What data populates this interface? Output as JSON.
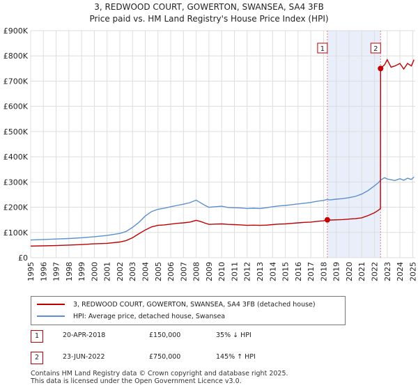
{
  "colors": {
    "property_line": "#c00000",
    "hpi_line": "#5b8fd0",
    "shade": "#e8eefa",
    "vline": "#e08080",
    "grid": "#dddddd"
  },
  "header": {
    "title_line1": "3, REDWOOD COURT, GOWERTON, SWANSEA, SA4 3FB",
    "title_line2": "Price paid vs. HM Land Registry's House Price Index (HPI)"
  },
  "chart_data": {
    "type": "line",
    "xlim": [
      1995,
      2025.2
    ],
    "ylim": [
      0,
      900000
    ],
    "y_ticks": [
      {
        "value": 0,
        "label": "£0"
      },
      {
        "value": 100000,
        "label": "£100K"
      },
      {
        "value": 200000,
        "label": "£200K"
      },
      {
        "value": 300000,
        "label": "£300K"
      },
      {
        "value": 400000,
        "label": "£400K"
      },
      {
        "value": 500000,
        "label": "£500K"
      },
      {
        "value": 600000,
        "label": "£600K"
      },
      {
        "value": 700000,
        "label": "£700K"
      },
      {
        "value": 800000,
        "label": "£800K"
      },
      {
        "value": 900000,
        "label": "£900K"
      }
    ],
    "x_ticks": [
      "1995",
      "1996",
      "1997",
      "1998",
      "1999",
      "2000",
      "2001",
      "2002",
      "2003",
      "2004",
      "2005",
      "2006",
      "2007",
      "2008",
      "2009",
      "2010",
      "2011",
      "2012",
      "2013",
      "2014",
      "2015",
      "2016",
      "2017",
      "2018",
      "2019",
      "2020",
      "2021",
      "2022",
      "2023",
      "2024",
      "2025"
    ],
    "shaded_region": [
      2018.3,
      2022.48
    ],
    "series": [
      {
        "name": "3, REDWOOD COURT, GOWERTON, SWANSEA, SA4 3FB (detached house)",
        "x": [
          1995,
          1996,
          1997,
          1998,
          1999,
          2000,
          2001,
          2002,
          2002.5,
          2003,
          2003.5,
          2004,
          2004.5,
          2005,
          2005.5,
          2006,
          2006.5,
          2007,
          2007.5,
          2008,
          2008.3,
          2008.7,
          2009,
          2009.5,
          2010,
          2010.5,
          2011,
          2011.5,
          2012,
          2012.5,
          2013,
          2013.5,
          2014,
          2014.5,
          2015,
          2015.5,
          2016,
          2016.5,
          2017,
          2017.5,
          2018,
          2018.3,
          2018.5,
          2019,
          2019.5,
          2020,
          2020.5,
          2021,
          2021.5,
          2022,
          2022.3,
          2022.47,
          2022.48,
          2022.8,
          2023,
          2023.3,
          2023.6,
          2024,
          2024.3,
          2024.6,
          2024.9,
          2025.1
        ],
        "values": [
          46000,
          47000,
          48000,
          50000,
          52000,
          55000,
          57000,
          62000,
          68000,
          79000,
          95000,
          110000,
          122000,
          128000,
          130000,
          133000,
          136000,
          138000,
          141000,
          148000,
          144000,
          137000,
          132000,
          133000,
          134000,
          132000,
          131000,
          130000,
          128000,
          129000,
          128000,
          129000,
          131000,
          133000,
          134000,
          136000,
          138000,
          140000,
          141000,
          144000,
          146000,
          150000,
          149000,
          150000,
          151000,
          153000,
          155000,
          158000,
          167000,
          178000,
          188000,
          195000,
          750000,
          765000,
          785000,
          755000,
          760000,
          770000,
          748000,
          770000,
          760000,
          785000
        ]
      },
      {
        "name": "HPI: Average price, detached house, Swansea",
        "x": [
          1995,
          1996,
          1997,
          1998,
          1999,
          2000,
          2001,
          2002,
          2002.5,
          2003,
          2003.5,
          2004,
          2004.5,
          2005,
          2005.5,
          2006,
          2006.5,
          2007,
          2007.5,
          2008,
          2008.3,
          2008.7,
          2009,
          2009.5,
          2010,
          2010.5,
          2011,
          2011.5,
          2012,
          2012.5,
          2013,
          2013.5,
          2014,
          2014.5,
          2015,
          2015.5,
          2016,
          2016.5,
          2017,
          2017.5,
          2018,
          2018.3,
          2018.5,
          2019,
          2019.5,
          2020,
          2020.5,
          2021,
          2021.5,
          2022,
          2022.3,
          2022.5,
          2022.8,
          2023,
          2023.3,
          2023.6,
          2024,
          2024.3,
          2024.6,
          2024.9,
          2025.1
        ],
        "values": [
          70000,
          72000,
          74000,
          76000,
          79000,
          83000,
          88000,
          96000,
          104000,
          120000,
          140000,
          165000,
          183000,
          192000,
          196000,
          202000,
          207000,
          212000,
          218000,
          228000,
          219000,
          207000,
          200000,
          202000,
          204000,
          199000,
          198000,
          197000,
          195000,
          196000,
          195000,
          198000,
          202000,
          205000,
          207000,
          210000,
          213000,
          216000,
          219000,
          224000,
          227000,
          231000,
          229000,
          232000,
          234000,
          238000,
          243000,
          252000,
          266000,
          285000,
          297000,
          308000,
          317000,
          312000,
          309000,
          306000,
          313000,
          307000,
          315000,
          310000,
          320000
        ]
      }
    ],
    "markers": [
      {
        "label": "1",
        "x": 2018.3,
        "value": 150000
      },
      {
        "label": "2",
        "x": 2022.48,
        "value": 750000
      }
    ],
    "legend_position": "bottom"
  },
  "legend": {
    "property_label": "3, REDWOOD COURT, GOWERTON, SWANSEA, SA4 3FB (detached house)",
    "hpi_label": "HPI: Average price, detached house, Swansea"
  },
  "transactions": [
    {
      "num": "1",
      "date": "20-APR-2018",
      "price": "£150,000",
      "hpi": "35% ↓ HPI"
    },
    {
      "num": "2",
      "date": "23-JUN-2022",
      "price": "£750,000",
      "hpi": "145% ↑ HPI"
    }
  ],
  "footer": {
    "line1": "Contains HM Land Registry data © Crown copyright and database right 2025.",
    "line2": "This data is licensed under the Open Government Licence v3.0."
  }
}
